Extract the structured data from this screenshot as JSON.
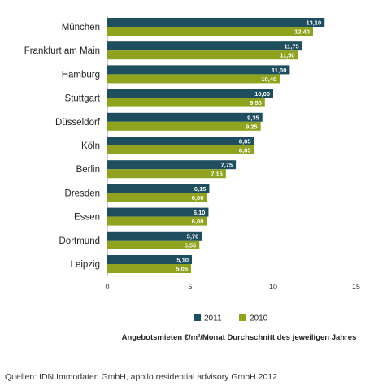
{
  "chart_data": {
    "type": "bar",
    "orientation": "horizontal",
    "categories": [
      "München",
      "Frankfurt am Main",
      "Hamburg",
      "Stuttgart",
      "Düsseldorf",
      "Köln",
      "Berlin",
      "Dresden",
      "Essen",
      "Dortmund",
      "Leipzig"
    ],
    "series": [
      {
        "name": "2011",
        "color": "#1f4e5f",
        "values": [
          13.1,
          11.75,
          11.0,
          10.0,
          9.35,
          8.85,
          7.75,
          6.15,
          6.1,
          5.7,
          5.1
        ],
        "labels": [
          "13,10",
          "11,75",
          "11,00",
          "10,00",
          "9,35",
          "8,85",
          "7,75",
          "6,15",
          "6,10",
          "5,70",
          "5,10"
        ]
      },
      {
        "name": "2010",
        "color": "#8fa31e",
        "values": [
          12.4,
          11.5,
          10.4,
          9.5,
          9.25,
          8.85,
          7.15,
          6.0,
          6.0,
          5.55,
          5.05
        ],
        "labels": [
          "12,40",
          "11,50",
          "10,40",
          "9,50",
          "9,25",
          "8,85",
          "7,15",
          "6,00",
          "6,00",
          "5,55",
          "5,05"
        ]
      }
    ],
    "xlim": [
      0,
      15
    ],
    "xticks": [
      0,
      5,
      10,
      15
    ],
    "xlabel": "Angebotsmieten €/m²/Monat Durchschnitt des jeweiligen Jahres",
    "legend_position": "bottom",
    "grid": false
  },
  "source": "Quellen: IDN Immodaten GmbH, apollo residential advisory GmbH 2012"
}
